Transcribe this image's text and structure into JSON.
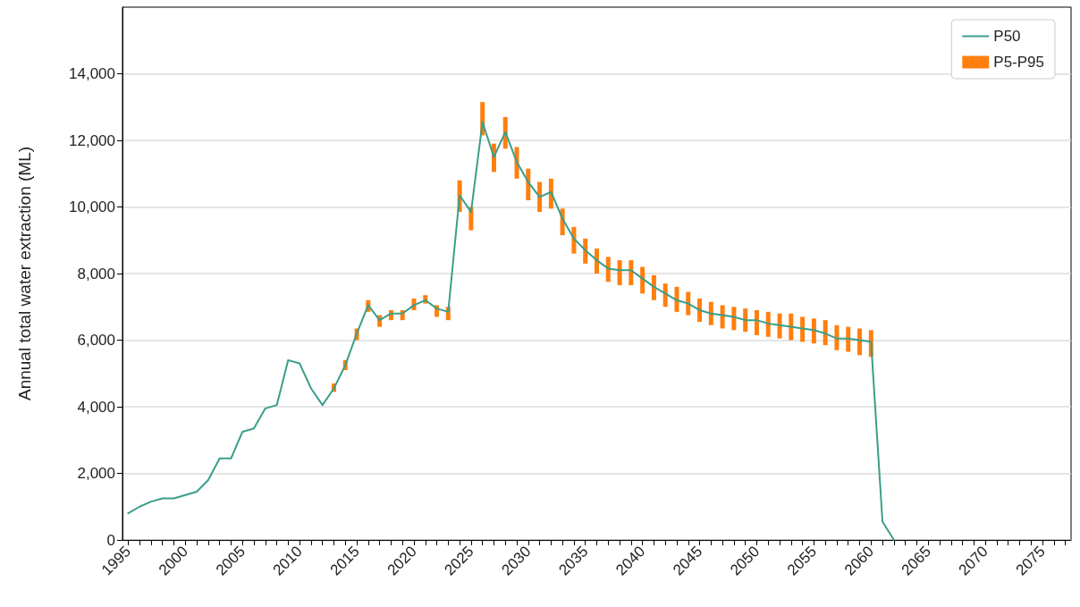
{
  "chart_data": {
    "type": "line",
    "ylabel": "Annual total water extraction (ML)",
    "xlim": [
      1994.5,
      2077.5
    ],
    "ylim": [
      0,
      16000
    ],
    "yticks": [
      0,
      {
        "value": 2000,
        "label": "2,000"
      },
      {
        "value": 4000,
        "label": "4,000"
      },
      {
        "value": 6000,
        "label": "6,000"
      },
      {
        "value": 8000,
        "label": "8,000"
      },
      {
        "value": 10000,
        "label": "10,000"
      },
      {
        "value": 12000,
        "label": "12,000"
      },
      {
        "value": 14000,
        "label": "14,000"
      }
    ],
    "xticks": [
      1995,
      {
        "value": 1996,
        "label": null
      },
      {
        "value": 1997,
        "label": null
      },
      {
        "value": 1998,
        "label": null
      },
      {
        "value": 1999,
        "label": null
      },
      2000,
      {
        "value": 2001,
        "label": null
      },
      {
        "value": 2002,
        "label": null
      },
      {
        "value": 2003,
        "label": null
      },
      {
        "value": 2004,
        "label": null
      },
      2005,
      {
        "value": 2006,
        "label": null
      },
      {
        "value": 2007,
        "label": null
      },
      {
        "value": 2008,
        "label": null
      },
      {
        "value": 2009,
        "label": null
      },
      2010,
      {
        "value": 2011,
        "label": null
      },
      {
        "value": 2012,
        "label": null
      },
      {
        "value": 2013,
        "label": null
      },
      {
        "value": 2014,
        "label": null
      },
      2015,
      {
        "value": 2016,
        "label": null
      },
      {
        "value": 2017,
        "label": null
      },
      {
        "value": 2018,
        "label": null
      },
      {
        "value": 2019,
        "label": null
      },
      2020,
      {
        "value": 2021,
        "label": null
      },
      {
        "value": 2022,
        "label": null
      },
      {
        "value": 2023,
        "label": null
      },
      {
        "value": 2024,
        "label": null
      },
      2025,
      {
        "value": 2026,
        "label": null
      },
      {
        "value": 2027,
        "label": null
      },
      {
        "value": 2028,
        "label": null
      },
      {
        "value": 2029,
        "label": null
      },
      2030,
      {
        "value": 2031,
        "label": null
      },
      {
        "value": 2032,
        "label": null
      },
      {
        "value": 2033,
        "label": null
      },
      {
        "value": 2034,
        "label": null
      },
      2035,
      {
        "value": 2036,
        "label": null
      },
      {
        "value": 2037,
        "label": null
      },
      {
        "value": 2038,
        "label": null
      },
      {
        "value": 2039,
        "label": null
      },
      2040,
      {
        "value": 2041,
        "label": null
      },
      {
        "value": 2042,
        "label": null
      },
      {
        "value": 2043,
        "label": null
      },
      {
        "value": 2044,
        "label": null
      },
      2045,
      {
        "value": 2046,
        "label": null
      },
      {
        "value": 2047,
        "label": null
      },
      {
        "value": 2048,
        "label": null
      },
      {
        "value": 2049,
        "label": null
      },
      2050,
      {
        "value": 2051,
        "label": null
      },
      {
        "value": 2052,
        "label": null
      },
      {
        "value": 2053,
        "label": null
      },
      {
        "value": 2054,
        "label": null
      },
      2055,
      {
        "value": 2056,
        "label": null
      },
      {
        "value": 2057,
        "label": null
      },
      {
        "value": 2058,
        "label": null
      },
      {
        "value": 2059,
        "label": null
      },
      2060,
      {
        "value": 2061,
        "label": null
      },
      {
        "value": 2062,
        "label": null
      },
      {
        "value": 2063,
        "label": null
      },
      {
        "value": 2064,
        "label": null
      },
      2065,
      {
        "value": 2066,
        "label": null
      },
      {
        "value": 2067,
        "label": null
      },
      {
        "value": 2068,
        "label": null
      },
      {
        "value": 2069,
        "label": null
      },
      2070,
      {
        "value": 2071,
        "label": null
      },
      {
        "value": 2072,
        "label": null
      },
      {
        "value": 2073,
        "label": null
      },
      {
        "value": 2074,
        "label": null
      },
      2075,
      {
        "value": 2076,
        "label": null
      },
      {
        "value": 2077,
        "label": null
      }
    ],
    "grid": "y",
    "legend": "top right",
    "marker": "none",
    "line_style": "solid",
    "series": [
      {
        "name": "P5-P95",
        "type": "bar",
        "color": "#ff7f0e",
        "x": [
          2013,
          2014,
          2015,
          2016,
          2017,
          2018,
          2019,
          2020,
          2021,
          2022,
          2023,
          2024,
          2025,
          2026,
          2027,
          2028,
          2029,
          2030,
          2031,
          2032,
          2033,
          2034,
          2035,
          2036,
          2037,
          2038,
          2039,
          2040,
          2041,
          2042,
          2043,
          2044,
          2045,
          2046,
          2047,
          2048,
          2049,
          2050,
          2051,
          2052,
          2053,
          2054,
          2055,
          2056,
          2057,
          2058,
          2059,
          2060
        ],
        "base": [
          4450,
          5100,
          6000,
          6850,
          6400,
          6600,
          6600,
          6900,
          7100,
          6700,
          6600,
          9850,
          9300,
          12150,
          11050,
          11750,
          10850,
          10200,
          9850,
          9950,
          9150,
          8600,
          8300,
          8000,
          7750,
          7650,
          7650,
          7400,
          7200,
          7000,
          6850,
          6750,
          6550,
          6450,
          6350,
          6300,
          6250,
          6150,
          6100,
          6050,
          6000,
          5950,
          5900,
          5850,
          5700,
          5650,
          5550,
          5500
        ],
        "values": [
          250,
          300,
          350,
          350,
          350,
          300,
          300,
          350,
          250,
          350,
          400,
          950,
          700,
          1000,
          850,
          950,
          950,
          950,
          900,
          900,
          800,
          800,
          750,
          750,
          750,
          750,
          750,
          800,
          750,
          700,
          750,
          700,
          700,
          700,
          700,
          700,
          700,
          750,
          750,
          750,
          800,
          750,
          750,
          750,
          750,
          750,
          800,
          800
        ]
      },
      {
        "name": "P50",
        "color": "#3a9e8a",
        "x": [
          1995,
          1996,
          1997,
          1998,
          1999,
          2000,
          2001,
          2002,
          2003,
          2004,
          2005,
          2006,
          2007,
          2008,
          2009,
          2010,
          2011,
          2012,
          2013,
          2014,
          2015,
          2016,
          2017,
          2018,
          2019,
          2020,
          2021,
          2022,
          2023,
          2024,
          2025,
          2026,
          2027,
          2028,
          2029,
          2030,
          2031,
          2032,
          2033,
          2034,
          2035,
          2036,
          2037,
          2038,
          2039,
          2040,
          2041,
          2042,
          2043,
          2044,
          2045,
          2046,
          2047,
          2048,
          2049,
          2050,
          2051,
          2052,
          2053,
          2054,
          2055,
          2056,
          2057,
          2058,
          2059,
          2060,
          2061,
          2062
        ],
        "values": [
          800,
          1000,
          1150,
          1250,
          1250,
          1350,
          1450,
          1800,
          2450,
          2450,
          3250,
          3350,
          3950,
          4050,
          5400,
          5300,
          4550,
          4050,
          4550,
          5250,
          6200,
          7050,
          6600,
          6800,
          6800,
          7050,
          7200,
          6950,
          6850,
          10350,
          9850,
          12550,
          11500,
          12250,
          11350,
          10750,
          10300,
          10450,
          9650,
          9050,
          8700,
          8400,
          8150,
          8100,
          8100,
          7850,
          7600,
          7400,
          7200,
          7100,
          6900,
          6800,
          6750,
          6700,
          6600,
          6600,
          6500,
          6450,
          6400,
          6350,
          6300,
          6200,
          6050,
          6050,
          6000,
          5950,
          550,
          0
        ]
      }
    ]
  }
}
